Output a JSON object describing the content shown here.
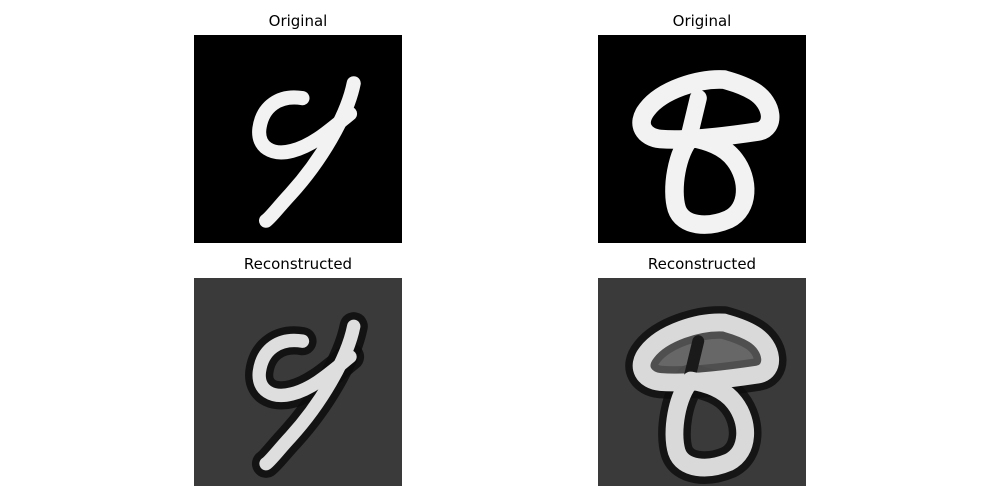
{
  "panels": [
    {
      "title": "Original",
      "digit": "9",
      "kind": "original",
      "background": "#000000",
      "stroke": "#f2f2f2"
    },
    {
      "title": "Original",
      "digit": "8",
      "kind": "original",
      "background": "#000000",
      "stroke": "#f2f2f2"
    },
    {
      "title": "Reconstructed",
      "digit": "9",
      "kind": "reconstructed",
      "background": "#3a3a3a",
      "stroke": "#dedede",
      "halo": "#0d0d0d"
    },
    {
      "title": "Reconstructed",
      "digit": "8",
      "kind": "reconstructed",
      "background": "#3a3a3a",
      "stroke": "#d9d9d9",
      "halo": "#0d0d0d"
    }
  ]
}
